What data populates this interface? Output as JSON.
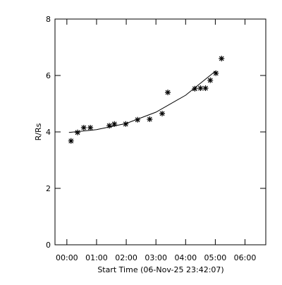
{
  "chart_data": {
    "type": "scatter",
    "xlabel": "Start Time (06-Nov-25 23:42:07)",
    "ylabel": "R/Rs",
    "xlim": [
      -0.4,
      6.7
    ],
    "ylim": [
      0,
      8
    ],
    "xticks": [
      {
        "value": 0,
        "label": "00:00"
      },
      {
        "value": 1,
        "label": "01:00"
      },
      {
        "value": 2,
        "label": "02:00"
      },
      {
        "value": 3,
        "label": "03:00"
      },
      {
        "value": 4,
        "label": "04:00"
      },
      {
        "value": 5,
        "label": "05:00"
      },
      {
        "value": 6,
        "label": "06:00"
      }
    ],
    "yticks": [
      0,
      2,
      4,
      6,
      8
    ],
    "color": "#000000",
    "x": [
      0.14,
      0.36,
      0.57,
      0.79,
      1.43,
      1.6,
      1.98,
      2.38,
      2.79,
      3.21,
      3.4,
      4.31,
      4.5,
      4.67,
      4.83,
      5.02,
      5.21
    ],
    "values": [
      3.68,
      3.98,
      4.15,
      4.15,
      4.22,
      4.28,
      4.28,
      4.43,
      4.45,
      4.65,
      5.4,
      5.53,
      5.55,
      5.55,
      5.83,
      6.08,
      6.6
    ],
    "fit": {
      "x": [
        0.07,
        1,
        2,
        3,
        4,
        5
      ],
      "values": [
        3.98,
        4.08,
        4.3,
        4.7,
        5.3,
        6.15
      ]
    }
  }
}
